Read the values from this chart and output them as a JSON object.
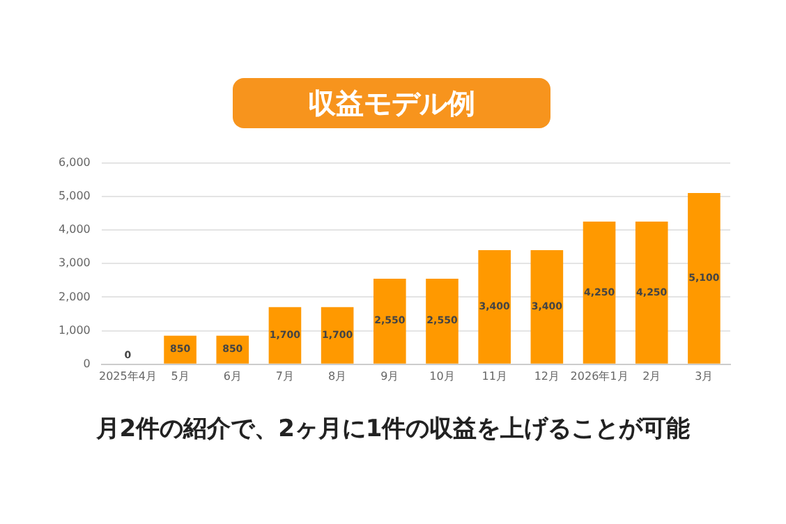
{
  "chart_data": {
    "type": "bar",
    "title": "収益モデル例",
    "categories": [
      "2025年4月",
      "5月",
      "6月",
      "7月",
      "8月",
      "9月",
      "10月",
      "11月",
      "12月",
      "2026年1月",
      "2月",
      "3月"
    ],
    "values": [
      0,
      850,
      850,
      1700,
      1700,
      2550,
      2550,
      3400,
      3400,
      4250,
      4250,
      5100
    ],
    "value_labels": [
      "0",
      "850",
      "850",
      "1,700",
      "1,700",
      "2,550",
      "2,550",
      "3,400",
      "3,400",
      "4,250",
      "4,250",
      "5,100"
    ],
    "color": "#ff9900",
    "ylim": [
      0,
      6000
    ],
    "yticks": [
      0,
      {
        "value": 1000,
        "label": "1,000"
      },
      {
        "value": 2000,
        "label": "2,000"
      },
      {
        "value": 3000,
        "label": "3,000"
      },
      {
        "value": 4000,
        "label": "4,000"
      },
      {
        "value": 5000,
        "label": "5,000"
      },
      {
        "value": 6000,
        "label": "6,000"
      }
    ],
    "grid": "y",
    "annotations": [
      "月2件の紹介で、2ヶ月に1件の収益を上げることが可能"
    ]
  }
}
